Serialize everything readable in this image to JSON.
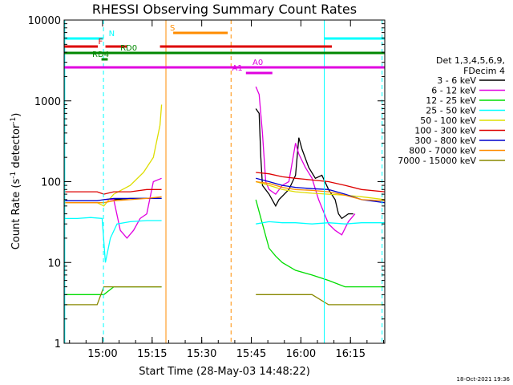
{
  "chart_data": {
    "type": "line",
    "title": "RHESSI Observing Summary Count Rates",
    "xlabel": "Start Time (28-May-03 14:48:22)",
    "ylabel_main": "Count Rate (s",
    "ylabel_sup1": "-1",
    "ylabel_mid": " detector",
    "ylabel_sup2": "-1",
    "ylabel_end": ")",
    "yscale": "log",
    "ylim": [
      1,
      10000
    ],
    "xlim_minutes": [
      0,
      97
    ],
    "x_ticks": [
      {
        "t": 11.63,
        "label": "15:00"
      },
      {
        "t": 26.63,
        "label": "15:15"
      },
      {
        "t": 41.63,
        "label": "15:30"
      },
      {
        "t": 56.63,
        "label": "15:45"
      },
      {
        "t": 71.63,
        "label": "16:00"
      },
      {
        "t": 86.63,
        "label": "16:15"
      }
    ],
    "y_ticks": [
      {
        "v": 1,
        "label": "1"
      },
      {
        "v": 10,
        "label": "10"
      },
      {
        "v": 100,
        "label": "100"
      },
      {
        "v": 1000,
        "label": "1000"
      },
      {
        "v": 10000,
        "label": "10000"
      }
    ],
    "legend_header": [
      "Det 1,3,4,5,6,9,",
      "FDecim 4"
    ],
    "series": [
      {
        "name": "3 - 6 keV",
        "color": "#000000",
        "segments": [
          [
            [
              12,
              60
            ],
            [
              15,
              60
            ],
            [
              20,
              62
            ],
            [
              25,
              62
            ],
            [
              29.5,
              62
            ]
          ],
          [
            [
              58,
              800
            ],
            [
              59,
              700
            ],
            [
              59.5,
              200
            ],
            [
              60,
              90
            ],
            [
              62,
              70
            ],
            [
              64,
              50
            ],
            [
              65,
              60
            ],
            [
              68,
              80
            ],
            [
              70,
              120
            ],
            [
              71,
              350
            ],
            [
              72,
              250
            ],
            [
              74,
              150
            ],
            [
              76,
              110
            ],
            [
              78,
              120
            ],
            [
              80,
              80
            ],
            [
              82,
              60
            ],
            [
              83,
              40
            ],
            [
              84,
              35
            ],
            [
              86,
              40
            ],
            [
              87.5,
              40
            ]
          ]
        ]
      },
      {
        "name": "6 - 12 keV",
        "color": "#e000e0",
        "segments": [
          [
            [
              12,
              60
            ],
            [
              15,
              60
            ],
            [
              17,
              25
            ],
            [
              19,
              20
            ],
            [
              21,
              25
            ],
            [
              23,
              35
            ],
            [
              25,
              40
            ],
            [
              27,
              100
            ],
            [
              29.5,
              110
            ]
          ],
          [
            [
              58,
              1500
            ],
            [
              59,
              1200
            ],
            [
              60,
              400
            ],
            [
              61,
              100
            ],
            [
              62,
              80
            ],
            [
              64,
              70
            ],
            [
              66,
              90
            ],
            [
              68,
              100
            ],
            [
              70,
              300
            ],
            [
              71,
              220
            ],
            [
              73,
              150
            ],
            [
              75,
              110
            ],
            [
              77,
              60
            ],
            [
              80,
              30
            ],
            [
              82,
              25
            ],
            [
              84,
              22
            ],
            [
              86,
              32
            ],
            [
              88,
              40
            ]
          ]
        ]
      },
      {
        "name": "12 - 25 keV",
        "color": "#00dd00",
        "segments": [
          [
            [
              0,
              4
            ],
            [
              5,
              4
            ],
            [
              10,
              4
            ],
            [
              12,
              4
            ],
            [
              15,
              5
            ],
            [
              20,
              5
            ],
            [
              25,
              5
            ],
            [
              29.5,
              5
            ]
          ],
          [
            [
              58,
              60
            ],
            [
              60,
              30
            ],
            [
              62,
              15
            ],
            [
              64,
              12
            ],
            [
              66,
              10
            ],
            [
              70,
              8
            ],
            [
              75,
              7
            ],
            [
              80,
              6
            ],
            [
              85,
              5
            ],
            [
              90,
              5
            ],
            [
              97,
              5
            ]
          ]
        ]
      },
      {
        "name": "25 - 50 keV",
        "color": "#00ffff",
        "segments": [
          [
            [
              0,
              35
            ],
            [
              4,
              35
            ],
            [
              8,
              36
            ],
            [
              11.5,
              35
            ],
            [
              12.5,
              10
            ],
            [
              14,
              20
            ],
            [
              16,
              30
            ],
            [
              20,
              32
            ],
            [
              25,
              33
            ],
            [
              29.5,
              33
            ]
          ],
          [
            [
              58,
              30
            ],
            [
              62,
              32
            ],
            [
              66,
              31
            ],
            [
              70,
              31
            ],
            [
              75,
              30
            ],
            [
              80,
              31
            ],
            [
              85,
              30
            ],
            [
              90,
              31
            ],
            [
              97,
              31
            ]
          ]
        ]
      },
      {
        "name": "50 - 100 keV",
        "color": "#dddd00",
        "segments": [
          [
            [
              0,
              55
            ],
            [
              5,
              55
            ],
            [
              10,
              55
            ],
            [
              12,
              50
            ],
            [
              15,
              70
            ],
            [
              20,
              90
            ],
            [
              24,
              130
            ],
            [
              27,
              200
            ],
            [
              29,
              500
            ],
            [
              29.5,
              900
            ]
          ],
          [
            [
              58,
              100
            ],
            [
              62,
              90
            ],
            [
              66,
              80
            ],
            [
              70,
              75
            ],
            [
              75,
              72
            ],
            [
              80,
              70
            ],
            [
              85,
              68
            ],
            [
              90,
              65
            ],
            [
              97,
              60
            ]
          ]
        ]
      },
      {
        "name": "100 - 300 keV",
        "color": "#dd0000",
        "segments": [
          [
            [
              0,
              75
            ],
            [
              5,
              75
            ],
            [
              10,
              75
            ],
            [
              12,
              70
            ],
            [
              15,
              75
            ],
            [
              20,
              75
            ],
            [
              25,
              80
            ],
            [
              29.5,
              80
            ]
          ],
          [
            [
              58,
              130
            ],
            [
              62,
              125
            ],
            [
              66,
              115
            ],
            [
              70,
              110
            ],
            [
              75,
              105
            ],
            [
              80,
              100
            ],
            [
              85,
              90
            ],
            [
              90,
              80
            ],
            [
              97,
              75
            ]
          ]
        ]
      },
      {
        "name": "300 - 800 keV",
        "color": "#0000cc",
        "segments": [
          [
            [
              0,
              58
            ],
            [
              5,
              58
            ],
            [
              10,
              58
            ],
            [
              12,
              60
            ],
            [
              15,
              62
            ],
            [
              20,
              62
            ],
            [
              25,
              62
            ],
            [
              29.5,
              62
            ]
          ],
          [
            [
              58,
              110
            ],
            [
              62,
              100
            ],
            [
              66,
              90
            ],
            [
              70,
              85
            ],
            [
              75,
              82
            ],
            [
              80,
              80
            ],
            [
              85,
              70
            ],
            [
              90,
              60
            ],
            [
              97,
              55
            ]
          ]
        ]
      },
      {
        "name": "800 - 7000 keV",
        "color": "#ff8c00",
        "segments": [
          [
            [
              0,
              55
            ],
            [
              5,
              55
            ],
            [
              10,
              55
            ],
            [
              12,
              55
            ],
            [
              15,
              58
            ],
            [
              20,
              60
            ],
            [
              25,
              62
            ],
            [
              29.5,
              65
            ]
          ],
          [
            [
              58,
              100
            ],
            [
              62,
              95
            ],
            [
              66,
              85
            ],
            [
              70,
              80
            ],
            [
              75,
              78
            ],
            [
              80,
              75
            ],
            [
              85,
              68
            ],
            [
              90,
              60
            ],
            [
              97,
              58
            ]
          ]
        ]
      },
      {
        "name": "7000 - 15000 keV",
        "color": "#888800",
        "segments": [
          [
            [
              0,
              3
            ],
            [
              5,
              3
            ],
            [
              10,
              3
            ],
            [
              12,
              5
            ],
            [
              15,
              5
            ],
            [
              20,
              5
            ],
            [
              25,
              5
            ],
            [
              29.5,
              5
            ]
          ],
          [
            [
              58,
              4
            ],
            [
              62,
              4
            ],
            [
              66,
              4
            ],
            [
              70,
              4
            ],
            [
              75,
              4
            ],
            [
              80,
              3
            ],
            [
              85,
              3
            ],
            [
              90,
              3
            ],
            [
              97,
              3
            ]
          ]
        ]
      }
    ],
    "vertical_lines": [
      {
        "t": 0.2,
        "color": "#00ffff",
        "dash": false
      },
      {
        "t": 11.9,
        "color": "#00ffff",
        "dash": true
      },
      {
        "t": 30.8,
        "color": "#ff8c00",
        "dash": false
      },
      {
        "t": 50.5,
        "color": "#ff8c00",
        "dash": true
      },
      {
        "t": 78.7,
        "color": "#00ffff",
        "dash": false
      },
      {
        "t": 96.2,
        "color": "#00ffff",
        "dash": true
      }
    ],
    "flag_bars": [
      {
        "t0": 0,
        "t1": 11.9,
        "y": 48,
        "color": "#00ffff",
        "label": "N",
        "label_t": 13.5
      },
      {
        "t0": 78.7,
        "t1": 97,
        "y": 48,
        "color": "#00ffff",
        "label": "",
        "label_t": 0
      },
      {
        "t0": 0,
        "t1": 10.2,
        "y": 58,
        "color": "#dd0000",
        "label": "F",
        "label_t": 10.3
      },
      {
        "t0": 12.5,
        "t1": 19,
        "y": 58,
        "color": "#dd0000",
        "label": "",
        "label_t": 0
      },
      {
        "t0": 29,
        "t1": 81,
        "y": 58,
        "color": "#dd0000",
        "label": "",
        "label_t": 0
      },
      {
        "t0": 33,
        "t1": 49.5,
        "y": 41,
        "color": "#ff8c00",
        "label": "S",
        "label_t": 32
      },
      {
        "t0": 0,
        "t1": 97,
        "y": 66,
        "color": "#008800",
        "label": "RD0",
        "label_t": 17
      },
      {
        "t0": 11.3,
        "t1": 13.2,
        "y": 74,
        "color": "#008800",
        "label": "RD4",
        "label_t": 8.5
      },
      {
        "t0": 0,
        "t1": 97,
        "y": 84,
        "color": "#e000e0",
        "label": "A0",
        "label_t": 57
      },
      {
        "t0": 55,
        "t1": 63,
        "y": 91,
        "color": "#e000e0",
        "label": "A1",
        "label_t": 50.8
      }
    ],
    "footer_date": "18-Oct-2021 19:36"
  }
}
